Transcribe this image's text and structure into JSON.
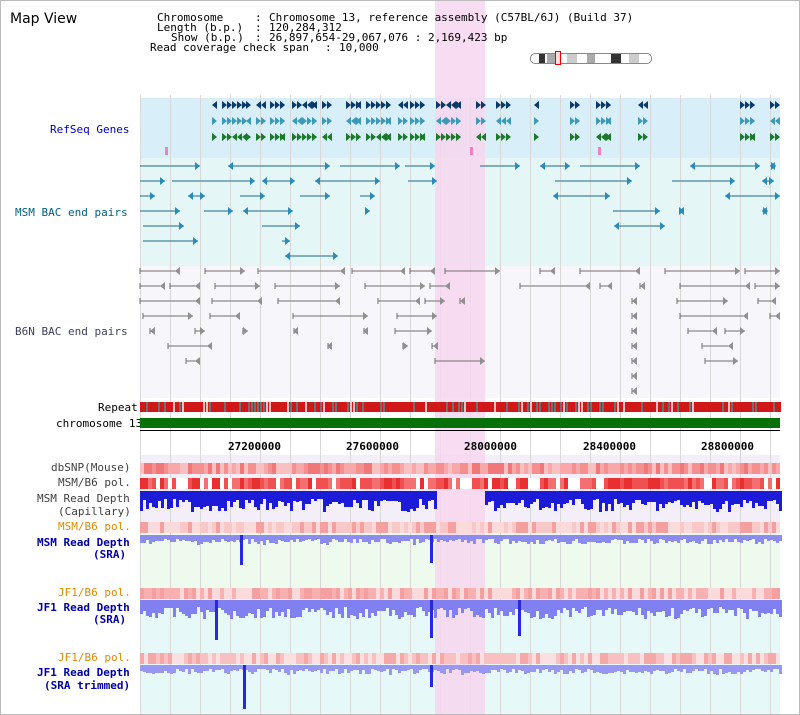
{
  "window": {
    "title": "Map View"
  },
  "header": {
    "chromosome_label": "Chromosome",
    "chromosome_value": "Chromosome 13, reference assembly (C57BL/6J) (Build 37)",
    "length_label": "Length (b.p.)",
    "length_value": "120,284,312",
    "show_label": "Show (b.p.)",
    "show_value": "26,897,654-29,067,076 : 2,169,423 bp",
    "coverage_label": "Read coverage check span",
    "coverage_value": "10,000"
  },
  "tracks": {
    "refseq": "RefSeq Genes",
    "msm_bac": "MSM BAC end pairs",
    "b6n_bac": "B6N BAC end pairs",
    "repeat": "Repeat",
    "chromosome": "chromosome 13",
    "dbsnp": "dbSNP(Mouse)",
    "msm_b6_pol_1": "MSM/B6 pol.",
    "msm_depth_cap_1": "MSM Read Depth",
    "msm_depth_cap_2": "(Capillary)",
    "msm_b6_pol_2": "MSM/B6 pol.",
    "msm_depth_sra_1": "MSM Read Depth",
    "msm_depth_sra_2": "(SRA)",
    "jf1_b6_pol_1": "JF1/B6 pol.",
    "jf1_depth_sra_1": "JF1 Read Depth",
    "jf1_depth_sra_2": "(SRA)",
    "jf1_b6_pol_2": "JF1/B6 pol.",
    "jf1_depth_trim_1": "JF1 Read Depth",
    "jf1_depth_trim_2": "(SRA trimmed)"
  },
  "axis": {
    "ticks": [
      "27200000",
      "27600000",
      "28000000",
      "28400000",
      "28800000"
    ]
  },
  "colors": {
    "refseq_bg": "#d8eef8",
    "msm_bg": "#e4f6f6",
    "b6n_bg": "#f6f6fb",
    "highlight": "#f7d6ef",
    "chromosome_bar": "#087008",
    "msm_blue": "#1c1cd8",
    "sra_blue": "#8080f0",
    "msm_label": "#0000a0",
    "orange_label": "#e08a00"
  }
}
